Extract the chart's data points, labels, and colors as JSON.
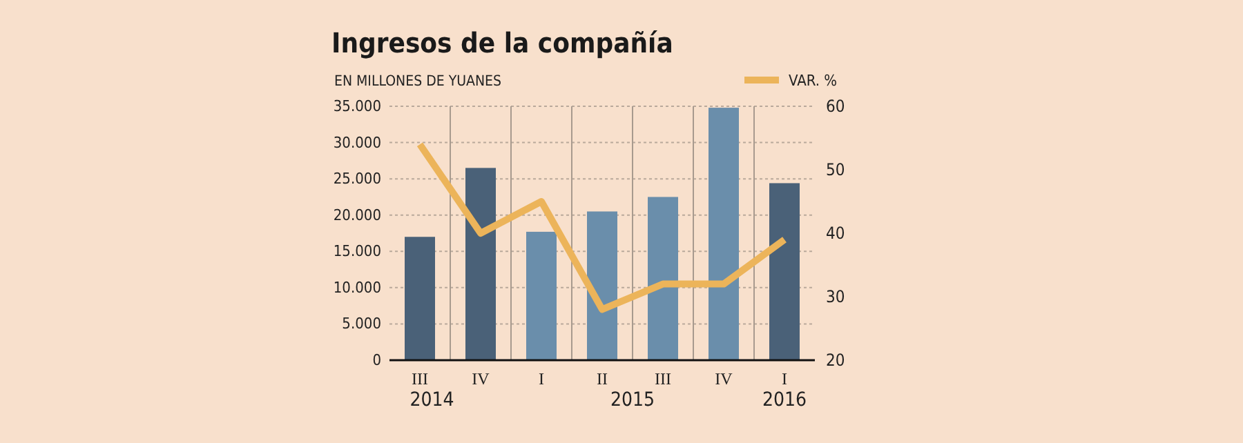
{
  "chart_data": {
    "type": "bar",
    "title": "Ingresos de la compañía",
    "ylabel": "EN MILLONES DE YUANES",
    "categories": [
      "III",
      "IV",
      "I",
      "II",
      "III",
      "IV",
      "I"
    ],
    "series": [
      {
        "colors": [
          "#4a6178",
          "#4a6178",
          "#6a8eab",
          "#6a8eab",
          "#6a8eab",
          "#6a8eab",
          "#4a6178"
        ],
        "values": [
          17000,
          26500,
          17700,
          20500,
          22500,
          34800,
          24400
        ]
      },
      {
        "type": "line",
        "name": "VAR. %",
        "color": "#ecb45a",
        "axis": "y2",
        "values": [
          54,
          40,
          45,
          28,
          32,
          32,
          39
        ]
      }
    ],
    "ylim": [
      0,
      35000
    ],
    "yticks": [
      0,
      {
        "value": 5000,
        "label": "5.000"
      },
      {
        "value": 10000,
        "label": "10.000"
      },
      {
        "value": 15000,
        "label": "15.000"
      },
      {
        "value": 20000,
        "label": "20.000"
      },
      {
        "value": 25000,
        "label": "25.000"
      },
      {
        "value": 30000,
        "label": "30.000"
      },
      {
        "value": 35000,
        "label": "35.000"
      }
    ],
    "y2lim": [
      20,
      60
    ],
    "y2ticks": [
      20,
      30,
      40,
      50,
      60
    ],
    "annotations": [
      "2014",
      "2015",
      "2016"
    ],
    "grid": true,
    "legend": "top right",
    "marker": "none",
    "line_style": "solid"
  }
}
